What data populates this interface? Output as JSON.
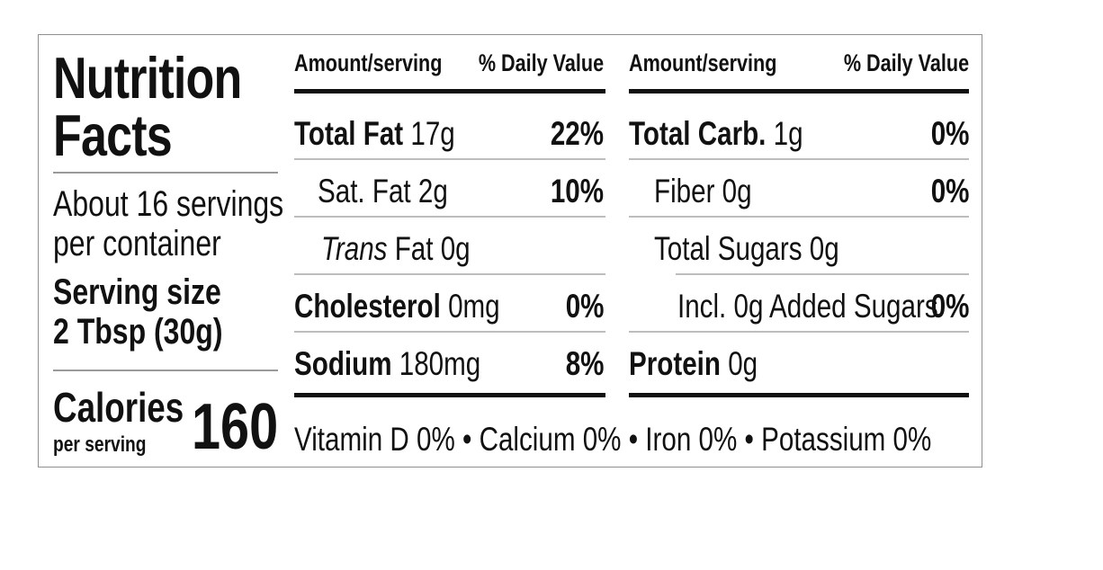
{
  "label": {
    "title_line1": "Nutrition",
    "title_line2": "Facts",
    "servings_line1": "About 16 servings",
    "servings_line2": "per container",
    "serving_size_label": "Serving size",
    "serving_size_value": "2 Tbsp (30g)",
    "calories_label": "Calories",
    "calories_sub": "per serving",
    "calories_value": "160"
  },
  "columns": {
    "header_amount": "Amount/serving",
    "header_dv": "% Daily Value"
  },
  "left_rows": [
    {
      "name": "Total Fat",
      "amount": "17g",
      "dv": "22%"
    },
    {
      "name": "Sat. Fat",
      "amount": "2g",
      "dv": "10%"
    },
    {
      "name": "Trans",
      "name_suffix": "Fat",
      "amount": "0g",
      "dv": ""
    },
    {
      "name": "Cholesterol",
      "amount": "0mg",
      "dv": "0%"
    },
    {
      "name": "Sodium",
      "amount": "180mg",
      "dv": "8%"
    }
  ],
  "right_rows": [
    {
      "name": "Total Carb.",
      "amount": "1g",
      "dv": "0%"
    },
    {
      "name": "Fiber",
      "amount": "0g",
      "dv": "0%"
    },
    {
      "name": "Total Sugars",
      "amount": "0g",
      "dv": ""
    },
    {
      "name": "Incl. 0g Added Sugars",
      "amount": "",
      "dv": "0%"
    },
    {
      "name": "Protein",
      "amount": "0g",
      "dv": ""
    }
  ],
  "footer": "Vitamin D 0% • Calcium 0% • Iron 0% • Potassium 0%"
}
